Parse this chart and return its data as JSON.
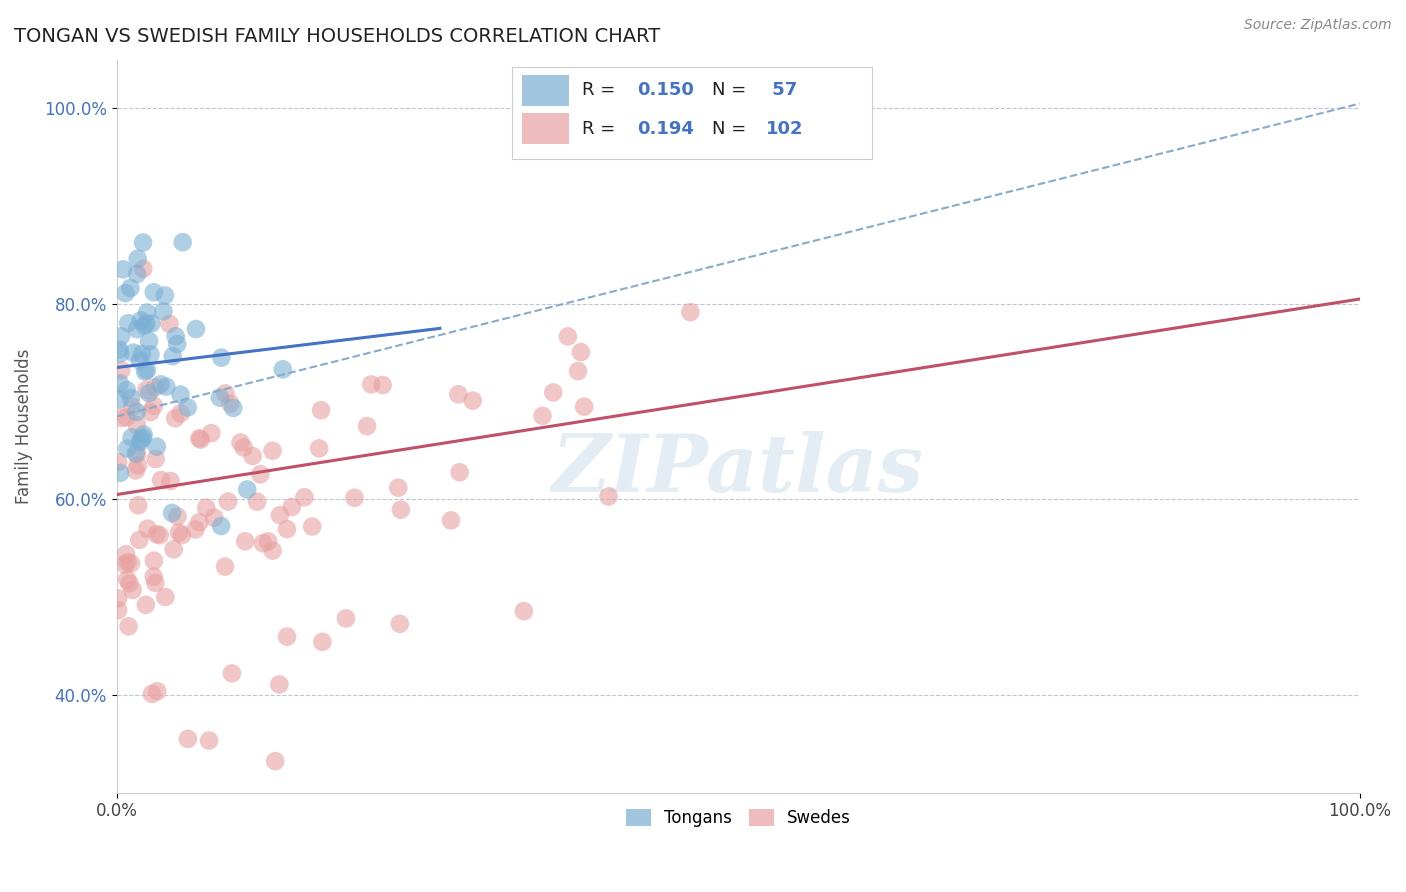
{
  "title": "TONGAN VS SWEDISH FAMILY HOUSEHOLDS CORRELATION CHART",
  "source_text": "Source: ZipAtlas.com",
  "ylabel": "Family Households",
  "xlim": [
    0.0,
    1.0
  ],
  "ylim": [
    0.3,
    1.05
  ],
  "x_tick_labels": [
    "0.0%",
    "100.0%"
  ],
  "y_ticks": [
    0.4,
    0.6,
    0.8,
    1.0
  ],
  "y_tick_labels": [
    "40.0%",
    "60.0%",
    "80.0%",
    "100.0%"
  ],
  "grid_color": "#b0b8c8",
  "background_color": "#ffffff",
  "tongan_color": "#7bafd4",
  "swedish_color": "#e8a0a0",
  "tongan_R": 0.15,
  "tongan_N": 57,
  "swedish_R": 0.194,
  "swedish_N": 102,
  "tongan_trend_color": "#4472c4",
  "swedish_trend_color": "#c0506a",
  "dashed_trend_color": "#88aacc",
  "watermark_color": "#c5d8e8",
  "legend_label_tongan": "Tongans",
  "legend_label_swedish": "Swedes",
  "tongan_trend_x0": 0.0,
  "tongan_trend_y0": 0.735,
  "tongan_trend_x1": 0.26,
  "tongan_trend_y1": 0.775,
  "swedish_trend_x0": 0.0,
  "swedish_trend_y0": 0.605,
  "swedish_trend_x1": 1.0,
  "swedish_trend_y1": 0.805,
  "dashed_trend_x0": 0.0,
  "dashed_trend_y0": 0.685,
  "dashed_trend_x1": 1.0,
  "dashed_trend_y1": 1.005
}
